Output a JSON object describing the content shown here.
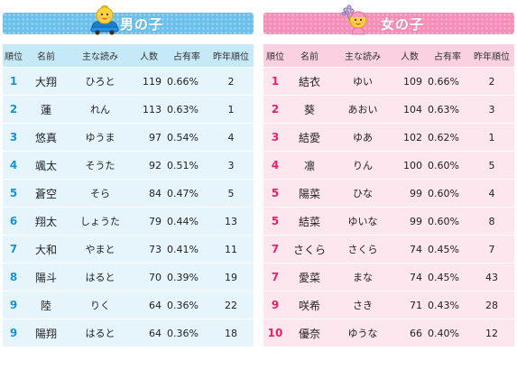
{
  "colors": {
    "boys_accent": "#1a93d3",
    "boys_header_bg": "#c6e9f8",
    "boys_row_bg": "#e6f5fc",
    "boys_banner": "#6cc0ec",
    "girls_accent": "#e8206a",
    "girls_header_bg": "#fbd1e1",
    "girls_row_bg": "#fde6ee",
    "girls_banner": "#f58eb8"
  },
  "boys": {
    "title": "男の子",
    "mascot_icon": "boy-in-car-icon",
    "columns": [
      "順位",
      "名前",
      "主な読み",
      "人数",
      "占有率",
      "昨年順位"
    ],
    "rows": [
      {
        "rank": "1",
        "name": "大翔",
        "reading": "ひろと",
        "count": "119",
        "share": "0.66%",
        "prev": "2"
      },
      {
        "rank": "2",
        "name": "蓮",
        "reading": "れん",
        "count": "113",
        "share": "0.63%",
        "prev": "1"
      },
      {
        "rank": "3",
        "name": "悠真",
        "reading": "ゆうま",
        "count": "97",
        "share": "0.54%",
        "prev": "4"
      },
      {
        "rank": "4",
        "name": "颯太",
        "reading": "そうた",
        "count": "92",
        "share": "0.51%",
        "prev": "3"
      },
      {
        "rank": "5",
        "name": "蒼空",
        "reading": "そら",
        "count": "84",
        "share": "0.47%",
        "prev": "5"
      },
      {
        "rank": "6",
        "name": "翔太",
        "reading": "しょうた",
        "count": "79",
        "share": "0.44%",
        "prev": "13"
      },
      {
        "rank": "7",
        "name": "大和",
        "reading": "やまと",
        "count": "73",
        "share": "0.41%",
        "prev": "11"
      },
      {
        "rank": "8",
        "name": "陽斗",
        "reading": "はると",
        "count": "70",
        "share": "0.39%",
        "prev": "19"
      },
      {
        "rank": "9",
        "name": "陸",
        "reading": "りく",
        "count": "64",
        "share": "0.36%",
        "prev": "22"
      },
      {
        "rank": "9",
        "name": "陽翔",
        "reading": "はると",
        "count": "64",
        "share": "0.36%",
        "prev": "18"
      }
    ]
  },
  "girls": {
    "title": "女の子",
    "mascot_icon": "girl-with-flowers-icon",
    "columns": [
      "順位",
      "名前",
      "主な読み",
      "人数",
      "占有率",
      "昨年順位"
    ],
    "rows": [
      {
        "rank": "1",
        "name": "結衣",
        "reading": "ゆい",
        "count": "109",
        "share": "0.66%",
        "prev": "2"
      },
      {
        "rank": "2",
        "name": "葵",
        "reading": "あおい",
        "count": "104",
        "share": "0.63%",
        "prev": "3"
      },
      {
        "rank": "3",
        "name": "結愛",
        "reading": "ゆあ",
        "count": "102",
        "share": "0.62%",
        "prev": "1"
      },
      {
        "rank": "4",
        "name": "凛",
        "reading": "りん",
        "count": "100",
        "share": "0.60%",
        "prev": "5"
      },
      {
        "rank": "5",
        "name": "陽菜",
        "reading": "ひな",
        "count": "99",
        "share": "0.60%",
        "prev": "4"
      },
      {
        "rank": "5",
        "name": "結菜",
        "reading": "ゆいな",
        "count": "99",
        "share": "0.60%",
        "prev": "8"
      },
      {
        "rank": "7",
        "name": "さくら",
        "reading": "さくら",
        "count": "74",
        "share": "0.45%",
        "prev": "7"
      },
      {
        "rank": "7",
        "name": "愛菜",
        "reading": "まな",
        "count": "74",
        "share": "0.45%",
        "prev": "43"
      },
      {
        "rank": "9",
        "name": "咲希",
        "reading": "さき",
        "count": "71",
        "share": "0.43%",
        "prev": "28"
      },
      {
        "rank": "10",
        "name": "優奈",
        "reading": "ゆうな",
        "count": "66",
        "share": "0.40%",
        "prev": "12"
      }
    ]
  }
}
